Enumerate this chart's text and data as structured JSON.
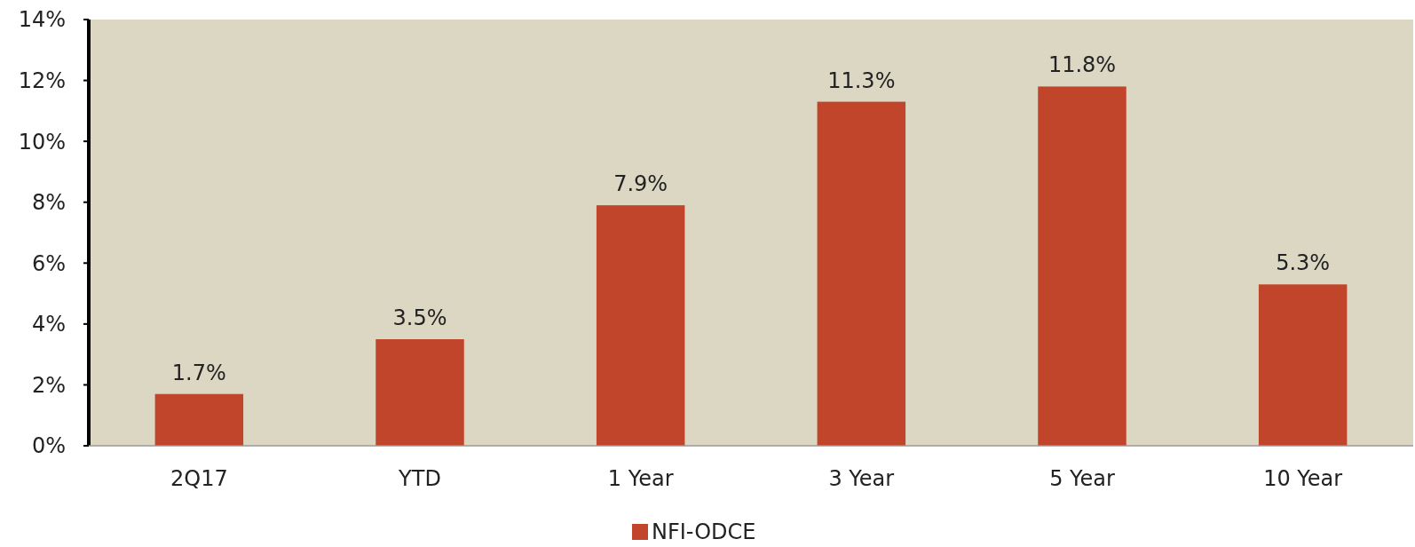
{
  "chart_data": {
    "type": "bar",
    "categories": [
      "2Q17",
      "YTD",
      "1 Year",
      "3 Year",
      "5 Year",
      "10 Year"
    ],
    "series": [
      {
        "name": "NFI-ODCE",
        "color": "#c0452a",
        "values": [
          1.7,
          3.5,
          7.9,
          11.3,
          11.8,
          5.3
        ]
      }
    ],
    "value_labels": [
      "1.7%",
      "3.5%",
      "7.9%",
      "11.3%",
      "11.8%",
      "5.3%"
    ],
    "ylim": [
      0,
      14
    ],
    "yticks": [
      {
        "value": 0,
        "label": "0%"
      },
      {
        "value": 2,
        "label": "2%"
      },
      {
        "value": 4,
        "label": "4%"
      },
      {
        "value": 6,
        "label": "6%"
      },
      {
        "value": 8,
        "label": "8%"
      },
      {
        "value": 10,
        "label": "10%"
      },
      {
        "value": 12,
        "label": "12%"
      },
      {
        "value": 14,
        "label": "14%"
      }
    ],
    "grid": false,
    "legend": "bottom"
  }
}
